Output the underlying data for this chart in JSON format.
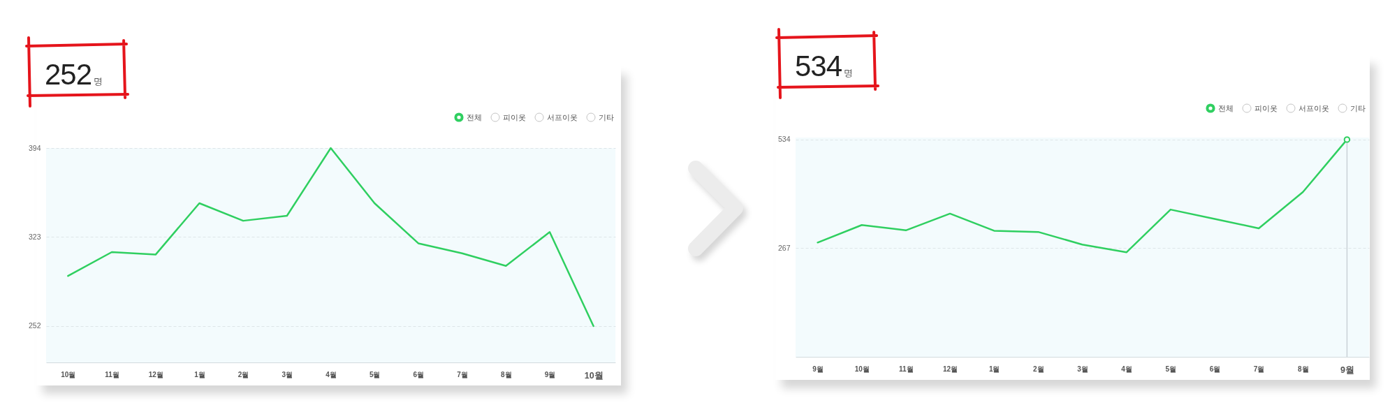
{
  "chart_data": [
    {
      "type": "line",
      "title": "252명",
      "categories": [
        "10월",
        "11월",
        "12월",
        "1월",
        "2월",
        "3월",
        "4월",
        "5월",
        "6월",
        "7월",
        "8월",
        "9월",
        "10월"
      ],
      "series": [
        {
          "name": "전체",
          "color": "#2fcf60",
          "values": [
            292,
            311,
            309,
            350,
            336,
            340,
            394,
            350,
            318,
            310,
            300,
            327,
            252
          ]
        }
      ],
      "ylim": [
        223,
        394
      ],
      "yticks": [
        252,
        323,
        394
      ],
      "grid": "y",
      "legend": "top right",
      "annotations": [
        "피이옷",
        "서프이옷",
        "기타"
      ]
    },
    {
      "type": "line",
      "title": "534명",
      "categories": [
        "9월",
        "10월",
        "11월",
        "12월",
        "1월",
        "2월",
        "3월",
        "4월",
        "5월",
        "6월",
        "7월",
        "8월",
        "9월"
      ],
      "series": [
        {
          "name": "전체",
          "color": "#2fcf60",
          "values": [
            281,
            324,
            311,
            352,
            310,
            307,
            276,
            257,
            362,
            339,
            316,
            405,
            534
          ]
        },
        {
          "type": "lollipop",
          "values": [
            null,
            null,
            null,
            null,
            null,
            null,
            null,
            null,
            null,
            null,
            null,
            null,
            534
          ],
          "color": "#2fcf60",
          "marker": "circle"
        }
      ],
      "ylim": [
        0,
        539
      ],
      "yticks": [
        267,
        534
      ],
      "grid": "y",
      "legend": "top right",
      "annotations": [
        "피이옷",
        "서프이옷",
        "기타"
      ]
    }
  ]
}
